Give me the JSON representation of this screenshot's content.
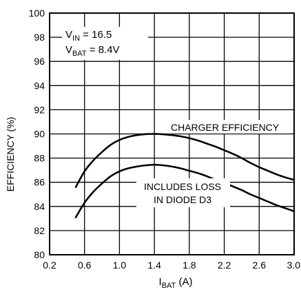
{
  "chart_data": {
    "type": "line",
    "title": "",
    "xlabel": {
      "main": "I",
      "sub": "BAT",
      "suffix": " (A)"
    },
    "ylabel": "EFFICIENCY (%)",
    "xlim": [
      0.2,
      3.0
    ],
    "ylim": [
      80,
      100
    ],
    "x_ticks": [
      0.2,
      0.6,
      1.0,
      1.4,
      1.8,
      2.2,
      2.6,
      3.0
    ],
    "x_tick_labels": [
      "0.2",
      "0.6",
      "1.0",
      "1.4",
      "1.8",
      "2.2",
      "2.6",
      "3.0"
    ],
    "y_ticks": [
      80,
      82,
      84,
      86,
      88,
      90,
      92,
      94,
      96,
      98,
      100
    ],
    "y_tick_labels": [
      "80",
      "82",
      "84",
      "86",
      "88",
      "90",
      "92",
      "94",
      "96",
      "98",
      "100"
    ],
    "grid": true,
    "series": [
      {
        "name": "CHARGER EFFICIENCY",
        "x": [
          0.5,
          0.6,
          0.7,
          0.8,
          0.9,
          1.0,
          1.1,
          1.2,
          1.3,
          1.4,
          1.5,
          1.6,
          1.7,
          1.8,
          1.9,
          2.0,
          2.1,
          2.2,
          2.3,
          2.4,
          2.5,
          2.6,
          2.7,
          2.8,
          2.9,
          3.0
        ],
        "y": [
          85.6,
          86.9,
          87.8,
          88.5,
          89.1,
          89.5,
          89.75,
          89.9,
          89.98,
          90.0,
          89.97,
          89.9,
          89.8,
          89.65,
          89.45,
          89.2,
          88.95,
          88.65,
          88.35,
          88.0,
          87.6,
          87.25,
          86.95,
          86.65,
          86.4,
          86.2
        ]
      },
      {
        "name": "INCLUDES LOSS IN DIODE D3",
        "x": [
          0.5,
          0.6,
          0.7,
          0.8,
          0.9,
          1.0,
          1.1,
          1.2,
          1.3,
          1.4,
          1.5,
          1.6,
          1.7,
          1.8,
          1.9,
          2.0,
          2.1,
          2.2,
          2.3,
          2.4,
          2.5,
          2.6,
          2.7,
          2.8,
          2.9,
          3.0
        ],
        "y": [
          83.1,
          84.3,
          85.2,
          85.9,
          86.5,
          86.9,
          87.15,
          87.3,
          87.4,
          87.45,
          87.4,
          87.3,
          87.15,
          86.95,
          86.75,
          86.5,
          86.2,
          85.95,
          85.65,
          85.35,
          85.0,
          84.7,
          84.4,
          84.1,
          83.85,
          83.6
        ]
      }
    ],
    "annotations": {
      "conditions_line1": {
        "main": "V",
        "sub": "IN",
        "suffix": " = 16.5"
      },
      "conditions_line2": {
        "main": "V",
        "sub": "BAT",
        "suffix": " = 8.4V"
      },
      "series1_label": "CHARGER EFFICIENCY",
      "series2_label_line1": "INCLUDES LOSS",
      "series2_label_line2": "IN DIODE D3"
    },
    "colors": {
      "line": "#000000",
      "grid": "#000000",
      "background": "#ffffff"
    }
  }
}
